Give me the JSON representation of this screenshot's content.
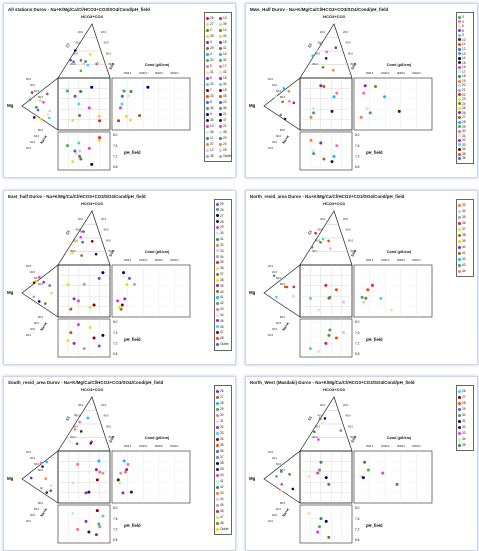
{
  "panels": [
    {
      "title": "All stations  Durov  - Na+K/Mg/Ca/Cl/HCO3+CO3/SO4/Cond/pH_field",
      "legend": [
        "26",
        "27",
        "2",
        "28",
        "3",
        "29",
        "4",
        "30",
        "5",
        "31",
        "6",
        "32",
        "7",
        "33",
        "8",
        "34",
        "9",
        "35",
        "10",
        "36",
        "11",
        "37",
        "12",
        "38",
        "13",
        "39",
        "14",
        "40",
        "15",
        "41",
        "16",
        "42",
        "17",
        "43",
        "18",
        "44",
        "19",
        "45",
        "20",
        "46",
        "21",
        "47",
        "22",
        "48",
        "23",
        "24",
        "25",
        "Outlet"
      ],
      "legend_columns": 2,
      "pH_ticks": [
        "8.0",
        "7.6",
        "7.2",
        "6.8"
      ],
      "cond_ticks": [
        "5000.0",
        "10000.0",
        "15000.0",
        "20000.0"
      ]
    },
    {
      "title": "Mws_Half  Durov  - Na+K/Mg/Ca/Cl/HCO3+CO3/SO4/Cond/pH_field",
      "legend": [
        "3",
        "4",
        "6",
        "8",
        "9",
        "10",
        "11",
        "12",
        "13",
        "14",
        "15",
        "16",
        "17",
        "18",
        "19",
        "20",
        "21",
        "22",
        "23",
        "24",
        "25",
        "26",
        "27",
        "28",
        "29",
        "30",
        "31",
        "32",
        "33",
        "34",
        "35",
        "36"
      ],
      "legend_columns": 1,
      "pH_ticks": [
        "8.0",
        "7.6",
        "7.2",
        "6.8"
      ],
      "cond_ticks": [
        "5000.0",
        "10000.0",
        "15000.0",
        "20000.0"
      ]
    },
    {
      "title": "East_half  Durov  - Na+K/Mg/Ca/Cl/HCO3+CO3/SO4/Cond/pH_field",
      "legend": [
        "25",
        "26",
        "27",
        "28",
        "29",
        "30",
        "31",
        "32",
        "33",
        "34",
        "35",
        "36",
        "37",
        "38",
        "39",
        "40",
        "41",
        "42",
        "43",
        "44",
        "45",
        "46",
        "47",
        "48",
        "Outlet"
      ],
      "legend_columns": 1,
      "pH_ticks": [
        "8.0",
        "7.6",
        "7.2",
        "6.8"
      ],
      "cond_ticks": [
        "5000.0",
        "10000.0",
        "15000.0",
        "20000.0"
      ]
    },
    {
      "title": "North_resid_area  Durov  - Na+K/Mg/Ca/Cl/HCO3+CO3/SO4/Cond/pH_field",
      "legend": [
        "33",
        "34",
        "35",
        "36",
        "37",
        "38",
        "39",
        "40",
        "41",
        "42",
        "43",
        "44"
      ],
      "legend_columns": 1,
      "pH_ticks": [
        "8.0",
        "7.6",
        "7.2",
        "6.8"
      ],
      "cond_ticks": [
        "5000.0",
        "10000.0",
        "15000.0",
        "20000.0"
      ]
    },
    {
      "title": "South_resid_area  Durov  - Na+K/Mg/Ca/Cl/HCO3+CO3/SO4/Cond/pH_field",
      "legend": [
        "26",
        "27",
        "28",
        "29",
        "30",
        "31",
        "32",
        "33",
        "34",
        "35",
        "36",
        "37",
        "38",
        "39",
        "40",
        "41",
        "42",
        "43",
        "44",
        "45",
        "46",
        "47",
        "48",
        "Outlet"
      ],
      "legend_columns": 1,
      "pH_ticks": [
        "8.0",
        "7.6",
        "7.2",
        "6.8"
      ],
      "cond_ticks": [
        "5000.0",
        "10000.0",
        "15000.0",
        "20000.0"
      ]
    },
    {
      "title": "North_West (Masdaki)  Durov  - Na+K/Mg/Ca/Cl/HCO3+CO3/SO4/Cond/pH_field",
      "legend": [
        "26",
        "27",
        "28",
        "29",
        "30",
        "31",
        "32",
        "33",
        "34",
        "35"
      ],
      "legend_columns": 1,
      "pH_ticks": [
        "8.0",
        "7.6",
        "7.2",
        "6.8"
      ],
      "cond_ticks": [
        "5000.0",
        "10000.0",
        "15000.0",
        "20000.0"
      ]
    }
  ],
  "labels": {
    "hco3": "HCO3+CO3",
    "cl": "Cl",
    "so4": "SO4",
    "mg": "Mg",
    "nak": "Na+K",
    "cond": "Cond (µS/cm)",
    "ph": "pH_field",
    "pct_ticks": [
      "20.0",
      "40.0",
      "60.0",
      "80.0"
    ]
  },
  "palette": [
    "#e6194b",
    "#3cb44b",
    "#4363d8",
    "#f58231",
    "#911eb4",
    "#42d4f4",
    "#f032e6",
    "#bfef45",
    "#ff69b4",
    "#469990",
    "#dcbeff",
    "#9a6324",
    "#800000",
    "#aaffc3",
    "#808000",
    "#ffd8b1",
    "#000075",
    "#a9a9a9",
    "#00bfff",
    "#ff4500",
    "#2e8b57",
    "#ffd700",
    "#8a2be2",
    "#222222"
  ],
  "chart_data": [
    {
      "type": "scatter",
      "title": "All stations  Durov  - Na+K/Mg/Ca/Cl/HCO3+CO3/SO4/Cond/pH_field",
      "series": [
        {
          "name": "Cond",
          "values": [
            2100,
            3200,
            4100,
            5200,
            6100,
            3800,
            2700,
            8800,
            11500,
            4600,
            3300,
            5900
          ]
        },
        {
          "name": "pH_field",
          "values": [
            7.9,
            7.7,
            7.4,
            7.3,
            7.1,
            7.6,
            7.5,
            7.2,
            6.9,
            7.8,
            7.4,
            7.0
          ]
        }
      ]
    },
    {
      "type": "scatter",
      "title": "Mws_Half  Durov  - Na+K/Mg/Ca/Cl/HCO3+CO3/SO4/Cond/pH_field",
      "series": [
        {
          "name": "Cond",
          "values": [
            2300,
            3100,
            4200,
            9800,
            14500,
            3600,
            5200,
            6900
          ]
        },
        {
          "name": "pH_field",
          "values": [
            7.8,
            7.6,
            7.4,
            7.2,
            7.0,
            7.7,
            7.3,
            7.1
          ]
        }
      ]
    },
    {
      "type": "scatter",
      "title": "East_half  Durov  - Na+K/Mg/Ca/Cl/HCO3+CO3/SO4/Cond/pH_field",
      "series": [
        {
          "name": "Cond",
          "values": [
            1800,
            2900,
            3700,
            4800,
            5600,
            2400,
            3300,
            7200,
            4100
          ]
        },
        {
          "name": "pH_field",
          "values": [
            7.9,
            7.6,
            7.5,
            7.3,
            7.1,
            7.8,
            7.4,
            7.0,
            7.2
          ]
        }
      ]
    },
    {
      "type": "scatter",
      "title": "North_resid_area  Durov  - Na+K/Mg/Ca/Cl/HCO3+CO3/SO4/Cond/pH_field",
      "series": [
        {
          "name": "Cond",
          "values": [
            2600,
            3800,
            4400,
            5900,
            8600,
            3100,
            12000
          ]
        },
        {
          "name": "pH_field",
          "values": [
            7.7,
            7.5,
            7.4,
            7.2,
            7.0,
            7.6,
            6.9
          ]
        }
      ]
    },
    {
      "type": "scatter",
      "title": "South_resid_area  Durov  - Na+K/Mg/Ca/Cl/HCO3+CO3/SO4/Cond/pH_field",
      "series": [
        {
          "name": "Cond",
          "values": [
            2000,
            2800,
            3500,
            4300,
            5100,
            2500,
            3900,
            6200,
            4700
          ]
        },
        {
          "name": "pH_field",
          "values": [
            7.9,
            7.7,
            7.5,
            7.3,
            7.2,
            7.8,
            7.4,
            7.1,
            7.0
          ]
        }
      ]
    },
    {
      "type": "scatter",
      "title": "North_West (Masdaki)  Durov  - Na+K/Mg/Ca/Cl/HCO3+CO3/SO4/Cond/pH_field",
      "series": [
        {
          "name": "Cond",
          "values": [
            2200,
            3400,
            4600,
            9200,
            13800,
            3000
          ]
        },
        {
          "name": "pH_field",
          "values": [
            7.8,
            7.6,
            7.3,
            7.1,
            6.9,
            7.5
          ]
        }
      ]
    }
  ]
}
